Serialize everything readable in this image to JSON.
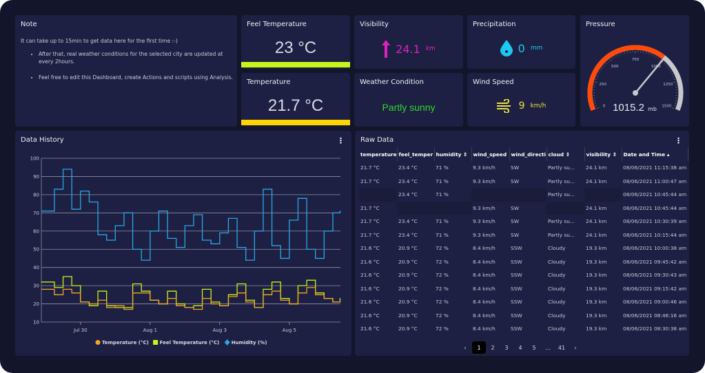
{
  "note": {
    "title": "Note",
    "intro": "It can take up to 15min to get data here for the first time :-)",
    "bullets": [
      "After that, real weather conditions for the selected city are updated at every 2hours.",
      "Feel free to edit this Dashboard, create Actions and scripts using Analysis."
    ]
  },
  "feel_temperature": {
    "title": "Feel Temperature",
    "value": "23 °C",
    "bar_color": "#c8f51a"
  },
  "temperature": {
    "title": "Temperature",
    "value": "21.7 °C",
    "bar_color": "#ffd500"
  },
  "visibility": {
    "title": "Visibility",
    "value": "24.1",
    "unit": "km",
    "icon": "arrow-up-icon",
    "color": "#e020c0"
  },
  "precipitation": {
    "title": "Precipitation",
    "value": "0",
    "unit": "mm",
    "icon": "water-drop-icon",
    "color": "#1ec8f0"
  },
  "weather_condition": {
    "title": "Weather Condition",
    "value": "Partly sunny",
    "color": "#2ed82e"
  },
  "wind_speed": {
    "title": "Wind Speed",
    "value": "9",
    "unit": "km/h",
    "icon": "wind-icon",
    "color": "#f0e040"
  },
  "pressure": {
    "title": "Pressure",
    "value": "1015.2",
    "unit": "mb",
    "min": 0,
    "max": 1500,
    "ticks": [
      "0",
      "250",
      "500",
      "750",
      "1000",
      "1250",
      "1500"
    ],
    "arc_color": "#ff4a0a",
    "track_color": "#c8c8cc"
  },
  "data_history": {
    "title": "Data History"
  },
  "chart_data": {
    "type": "line",
    "step": true,
    "x": [
      "2021-07-29T00:00",
      "2021-07-29T06:00",
      "2021-07-29T12:00",
      "2021-07-29T18:00",
      "2021-07-30T00:00",
      "2021-07-30T06:00",
      "2021-07-30T12:00",
      "2021-07-30T18:00",
      "2021-07-31T00:00",
      "2021-07-31T06:00",
      "2021-07-31T12:00",
      "2021-07-31T18:00",
      "2021-08-01T00:00",
      "2021-08-01T06:00",
      "2021-08-01T12:00",
      "2021-08-01T18:00",
      "2021-08-02T00:00",
      "2021-08-02T06:00",
      "2021-08-02T12:00",
      "2021-08-02T18:00",
      "2021-08-03T00:00",
      "2021-08-03T06:00",
      "2021-08-03T12:00",
      "2021-08-03T18:00",
      "2021-08-04T00:00",
      "2021-08-04T06:00",
      "2021-08-04T12:00",
      "2021-08-04T18:00",
      "2021-08-05T00:00",
      "2021-08-05T06:00",
      "2021-08-05T12:00",
      "2021-08-05T18:00",
      "2021-08-06T00:00",
      "2021-08-06T06:00",
      "2021-08-06T11:00"
    ],
    "series": [
      {
        "name": "Temperature (°C)",
        "color": "#f5a623",
        "marker": "circle",
        "values": [
          28,
          25,
          28,
          26,
          21,
          20,
          22,
          18,
          19,
          17,
          26,
          26,
          22,
          20,
          23,
          19,
          18,
          17,
          23,
          20,
          19,
          24,
          26,
          21,
          18,
          25,
          27,
          22,
          20,
          26,
          29,
          25,
          23,
          21,
          22
        ]
      },
      {
        "name": "Feel Temperature (°C)",
        "color": "#c8f51a",
        "marker": "square",
        "values": [
          32,
          29,
          35,
          30,
          21,
          19,
          27,
          19,
          18,
          18,
          31,
          27,
          22,
          20,
          27,
          20,
          18,
          19,
          28,
          21,
          19,
          25,
          31,
          22,
          18,
          28,
          32,
          23,
          20,
          30,
          33,
          26,
          23,
          21,
          23
        ]
      },
      {
        "name": "Humidity (%)",
        "color": "#29a8e8",
        "marker": "diamond",
        "values": [
          71,
          83,
          94,
          72,
          82,
          76,
          58,
          55,
          63,
          70,
          50,
          44,
          60,
          71,
          56,
          51,
          63,
          69,
          55,
          53,
          59,
          67,
          51,
          44,
          60,
          83,
          52,
          45,
          66,
          78,
          50,
          45,
          60,
          70,
          71
        ]
      }
    ],
    "xticks": [
      {
        "date": "2021-07-30",
        "label": "Jul 30"
      },
      {
        "date": "2021-08-01",
        "label": "Aug 1"
      },
      {
        "date": "2021-08-03",
        "label": "Aug 3"
      },
      {
        "date": "2021-08-05",
        "label": "Aug 5"
      }
    ],
    "xlim": [
      "2021-07-28T21:00",
      "2021-08-06T11:15"
    ],
    "ylim": [
      10,
      100
    ],
    "yticks": [
      "10",
      "20",
      "30",
      "40",
      "50",
      "60",
      "70",
      "80",
      "90",
      "100"
    ],
    "grid": true,
    "legend": "bottom"
  },
  "raw_data": {
    "title": "Raw Data",
    "columns": [
      "temperature",
      "feel_temper",
      "humidity ⇕",
      "wind_speed",
      "wind_directi",
      "cloud ⇕",
      "visibility ⇕",
      "Date and Time ▴"
    ],
    "rows": [
      [
        "21.7 °C",
        "23.4 °C",
        "71 %",
        "9.3 km/h",
        "SW",
        "Partly su...",
        "24.1 km",
        "08/06/2021 11:15:38 am"
      ],
      [
        "21.7 °C",
        "23.4 °C",
        "71 %",
        "9.3 km/h",
        "SW",
        "Partly su...",
        "24.1 km",
        "08/06/2021 11:00:47 am"
      ],
      [
        "",
        "23.4 °C",
        "71 %",
        "",
        "",
        "Partly su...",
        "",
        "08/06/2021 10:45:44 am"
      ],
      [
        "21.7 °C",
        "",
        "",
        "9.3 km/h",
        "SW",
        "",
        "24.1 km",
        "08/06/2021 10:45:44 am"
      ],
      [
        "21.7 °C",
        "23.4 °C",
        "71 %",
        "9.3 km/h",
        "SW",
        "Partly su...",
        "24.1 km",
        "08/06/2021 10:30:39 am"
      ],
      [
        "21.7 °C",
        "23.4 °C",
        "71 %",
        "9.3 km/h",
        "SW",
        "Partly su...",
        "24.1 km",
        "08/06/2021 10:15:44 am"
      ],
      [
        "21.6 °C",
        "20.9 °C",
        "72 %",
        "8.4 km/h",
        "SSW",
        "Cloudy",
        "19.3 km",
        "08/06/2021 10:00:38 am"
      ],
      [
        "21.6 °C",
        "20.9 °C",
        "72 %",
        "8.4 km/h",
        "SSW",
        "Cloudy",
        "19.3 km",
        "08/06/2021 09:45:42 am"
      ],
      [
        "21.6 °C",
        "20.9 °C",
        "72 %",
        "8.4 km/h",
        "SSW",
        "Cloudy",
        "19.3 km",
        "08/06/2021 09:30:43 am"
      ],
      [
        "21.6 °C",
        "20.9 °C",
        "72 %",
        "8.4 km/h",
        "SSW",
        "Cloudy",
        "19.3 km",
        "08/06/2021 09:15:42 am"
      ],
      [
        "21.6 °C",
        "20.9 °C",
        "72 %",
        "8.4 km/h",
        "SSW",
        "Cloudy",
        "19.3 km",
        "08/06/2021 09:00:46 am"
      ],
      [
        "21.6 °C",
        "20.9 °C",
        "72 %",
        "8.4 km/h",
        "SSW",
        "Cloudy",
        "19.3 km",
        "08/06/2021 08:46:16 am"
      ],
      [
        "21.6 °C",
        "20.9 °C",
        "72 %",
        "8.4 km/h",
        "SSW",
        "Cloudy",
        "19.3 km",
        "08/06/2021 08:30:38 am"
      ]
    ],
    "pagination": {
      "prev": "‹",
      "pages": [
        "1",
        "2",
        "3",
        "4",
        "5",
        "...",
        "41"
      ],
      "current": "1",
      "next": "›"
    }
  }
}
